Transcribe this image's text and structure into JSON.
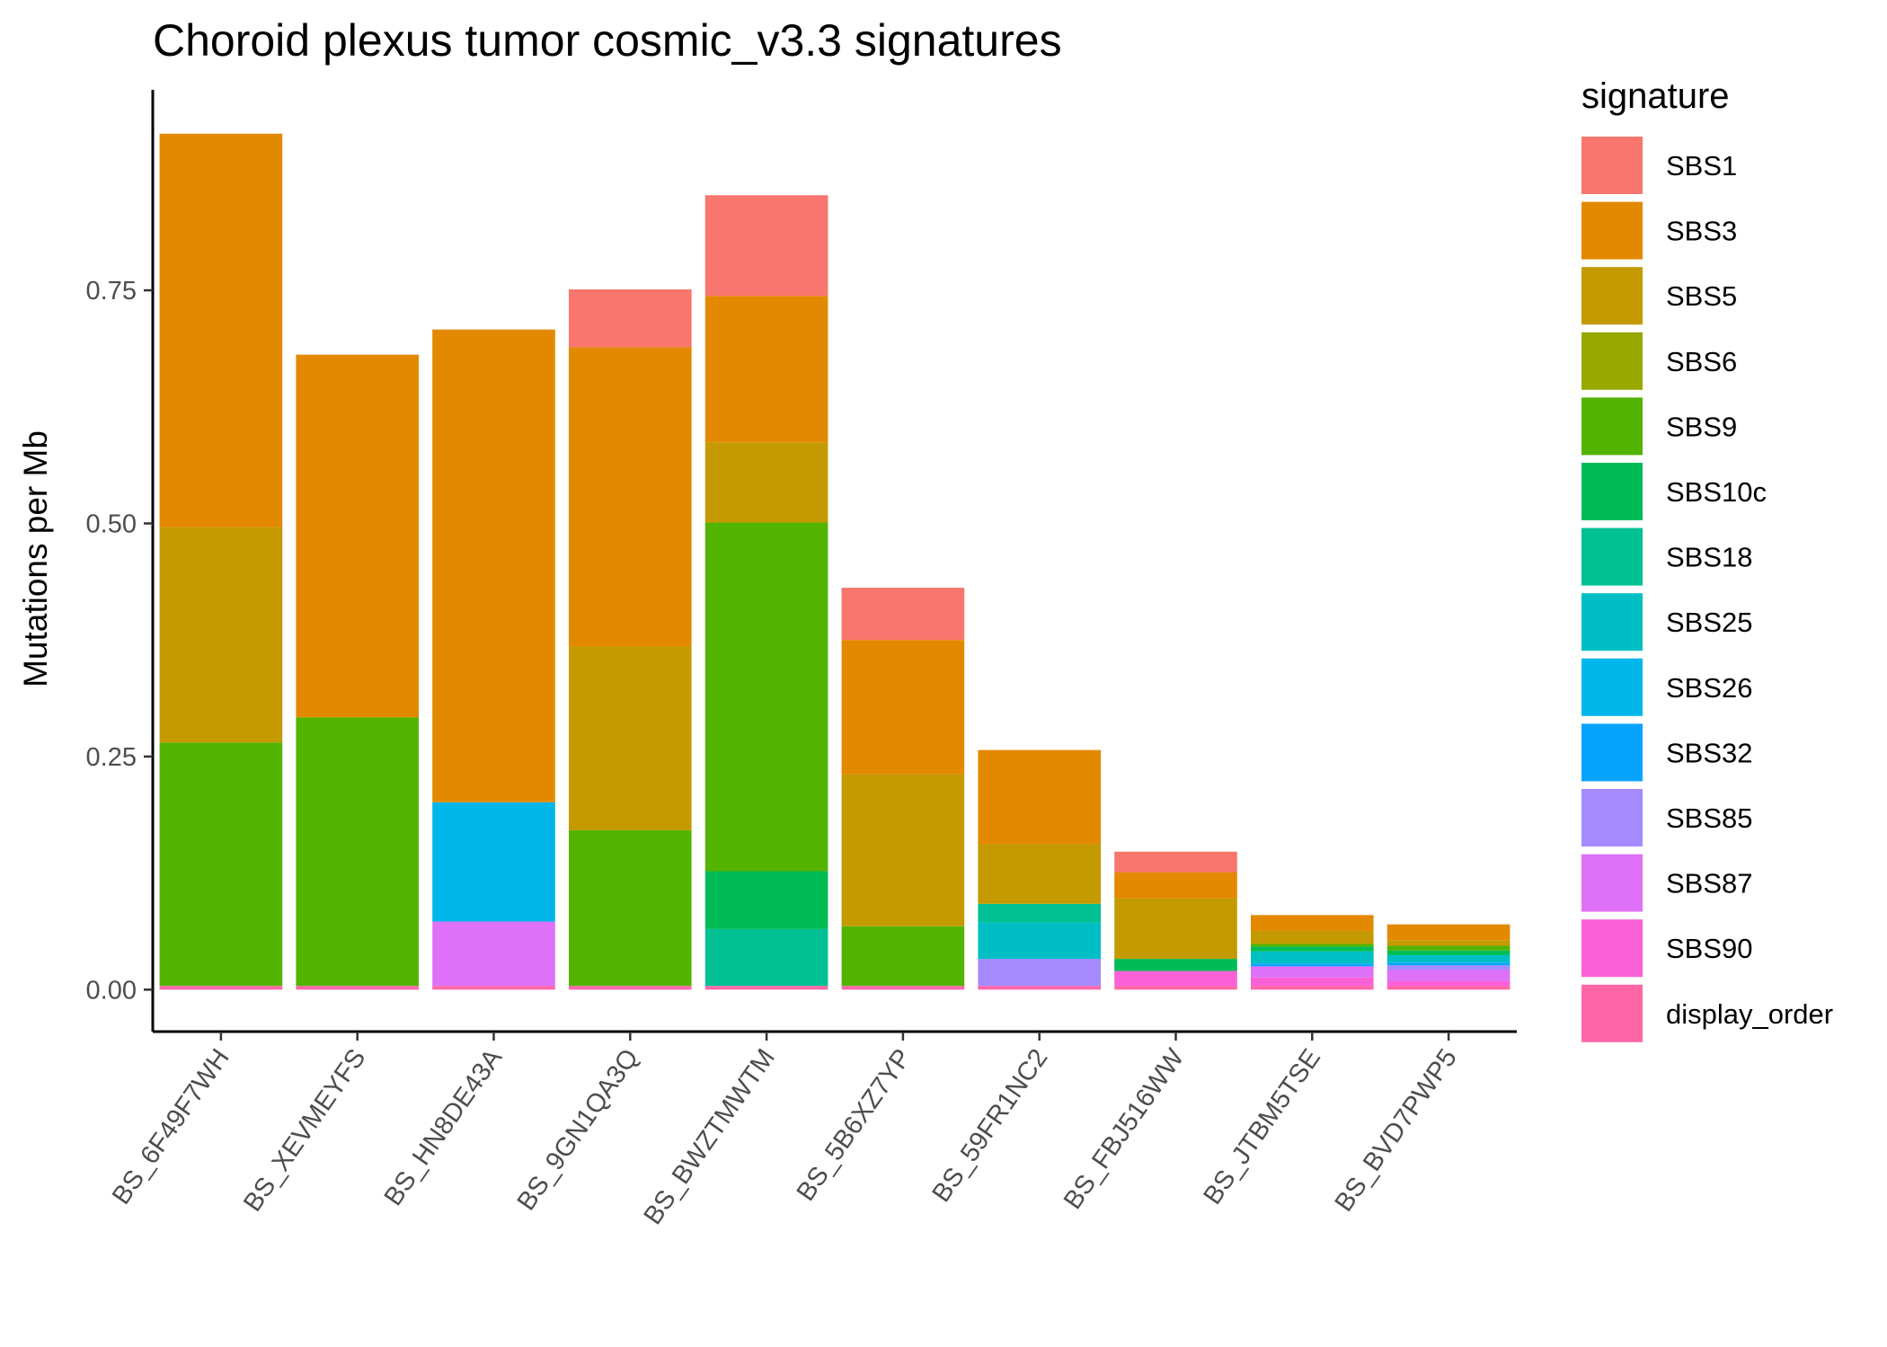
{
  "chart_data": {
    "type": "bar",
    "stacked": true,
    "title": "Choroid plexus tumor cosmic_v3.3 signatures",
    "xlabel": "",
    "ylabel": "Mutations per Mb",
    "ylim": [
      -0.045,
      0.965
    ],
    "yticks": [
      0.0,
      0.25,
      0.5,
      0.75
    ],
    "ytick_labels": [
      "0.00",
      "0.25",
      "0.50",
      "0.75"
    ],
    "grid": false,
    "legend": {
      "title": "signature",
      "position": "right"
    },
    "categories": [
      "BS_6F49F7WH",
      "BS_XEVMEYFS",
      "BS_HN8DE43A",
      "BS_9GN1QA3Q",
      "BS_BWZTMWTM",
      "BS_5B6XZ7YP",
      "BS_59FR1NC2",
      "BS_FBJ516WW",
      "BS_JTBM5TSE",
      "BS_BVD7PWP5"
    ],
    "series": [
      {
        "name": "SBS1",
        "color": "#F8766D",
        "values": [
          0,
          0,
          0,
          0.062,
          0.108,
          0.056,
          0,
          0.022,
          0,
          0
        ]
      },
      {
        "name": "SBS3",
        "color": "#E38900",
        "values": [
          0.422,
          0.389,
          0.507,
          0.321,
          0.157,
          0.144,
          0.101,
          0.028,
          0.017,
          0.017
        ]
      },
      {
        "name": "SBS5",
        "color": "#C49A00",
        "values": [
          0.231,
          0,
          0,
          0.197,
          0.086,
          0.163,
          0.064,
          0.065,
          0.014,
          0.006
        ]
      },
      {
        "name": "SBS6",
        "color": "#99A800",
        "values": [
          0,
          0,
          0,
          0,
          0,
          0,
          0,
          0,
          0,
          0
        ]
      },
      {
        "name": "SBS9",
        "color": "#53B400",
        "values": [
          0.261,
          0.288,
          0,
          0.167,
          0.374,
          0.064,
          0,
          0,
          0.003,
          0.005
        ]
      },
      {
        "name": "SBS10c",
        "color": "#00BC56",
        "values": [
          0,
          0,
          0,
          0,
          0.062,
          0,
          0,
          0.013,
          0.005,
          0.005
        ]
      },
      {
        "name": "SBS18",
        "color": "#00C094",
        "values": [
          0,
          0,
          0,
          0,
          0.061,
          0,
          0.02,
          0,
          0,
          0
        ]
      },
      {
        "name": "SBS25",
        "color": "#00BFC4",
        "values": [
          0,
          0,
          0,
          0,
          0,
          0,
          0.039,
          0,
          0.013,
          0.008
        ]
      },
      {
        "name": "SBS26",
        "color": "#00B6EB",
        "values": [
          0,
          0,
          0.128,
          0,
          0,
          0,
          0,
          0,
          0,
          0
        ]
      },
      {
        "name": "SBS32",
        "color": "#06A4FF",
        "values": [
          0,
          0,
          0,
          0,
          0,
          0,
          0,
          0,
          0.003,
          0.003
        ]
      },
      {
        "name": "SBS85",
        "color": "#A58AFF",
        "values": [
          0,
          0,
          0,
          0,
          0,
          0,
          0.029,
          0,
          0,
          0.005
        ]
      },
      {
        "name": "SBS87",
        "color": "#DF70F8",
        "values": [
          0,
          0,
          0.069,
          0,
          0,
          0,
          0,
          0,
          0.012,
          0.012
        ]
      },
      {
        "name": "SBS90",
        "color": "#FB61D7",
        "values": [
          0,
          0,
          0,
          0,
          0,
          0,
          0,
          0.016,
          0.009,
          0.005
        ]
      },
      {
        "name": "display_order",
        "color": "#FF66A8",
        "values": [
          0.004,
          0.004,
          0.004,
          0.004,
          0.004,
          0.004,
          0.004,
          0.004,
          0.004,
          0.004
        ]
      }
    ]
  }
}
